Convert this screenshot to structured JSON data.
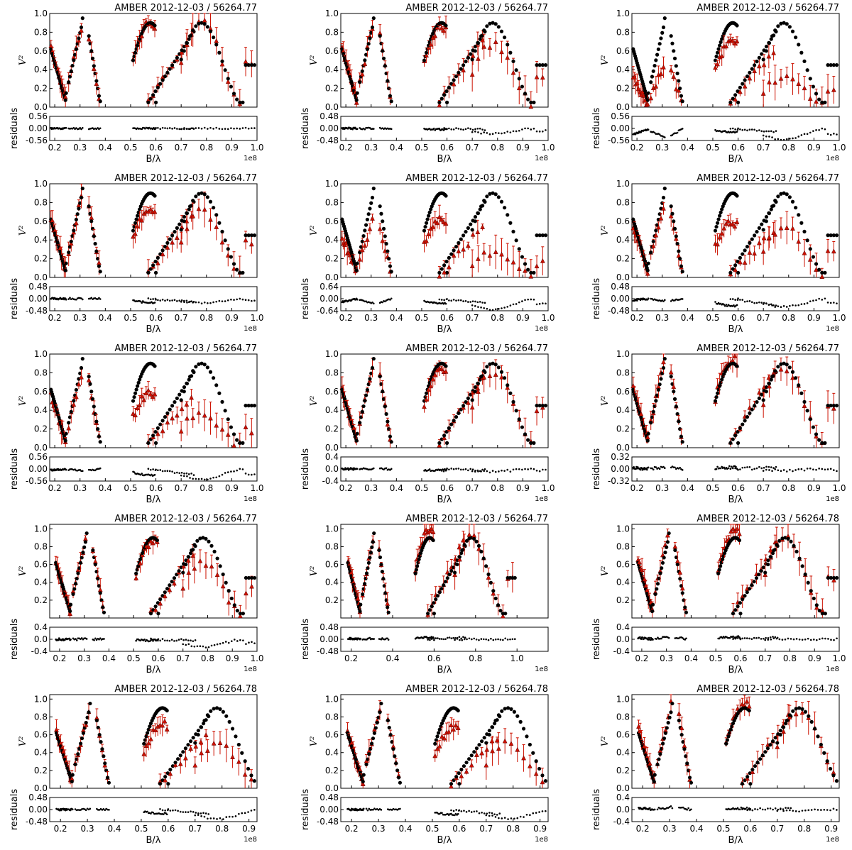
{
  "colors": {
    "model": "#000000",
    "data": "#cc1100"
  },
  "labels": {
    "xlabel": "B/λ",
    "ylabel": "V²",
    "rlabel": "residuals",
    "multiplier": "1e8"
  },
  "chart_data": [
    {
      "type": "scatter",
      "title": "AMBER 2012-12-03 / 56264.77",
      "xlim": [
        0.18,
        1.0
      ],
      "xticks": [
        "0.2",
        "0.3",
        "0.4",
        "0.5",
        "0.6",
        "0.7",
        "0.8",
        "0.9",
        "1.0"
      ],
      "ylim": [
        0,
        1.0
      ],
      "yticks": [
        "0.0",
        "0.2",
        "0.4",
        "0.6",
        "0.8",
        "1.0"
      ],
      "rticks": [
        "0.56",
        "0.00",
        "-0.56"
      ],
      "rlim": [
        -0.56,
        0.56
      ],
      "amp": [
        1.0,
        1.0,
        1.0
      ],
      "seed": 11
    },
    {
      "type": "scatter",
      "title": "AMBER 2012-12-03 / 56264.77",
      "xlim": [
        0.18,
        1.0
      ],
      "xticks": [
        "0.2",
        "0.3",
        "0.4",
        "0.5",
        "0.6",
        "0.7",
        "0.8",
        "0.9",
        "1.0"
      ],
      "ylim": [
        0,
        1.0
      ],
      "yticks": [
        "0.0",
        "0.2",
        "0.4",
        "0.6",
        "0.8",
        "1.0"
      ],
      "rticks": [
        "0.48",
        "0.00",
        "-0.48"
      ],
      "rlim": [
        -0.48,
        0.48
      ],
      "amp": [
        1.0,
        0.95,
        0.75
      ],
      "seed": 12
    },
    {
      "type": "scatter",
      "title": "AMBER 2012-12-03 / 56264.77",
      "xlim": [
        0.18,
        1.0
      ],
      "xticks": [
        "0.2",
        "0.3",
        "0.4",
        "0.5",
        "0.6",
        "0.7",
        "0.8",
        "0.9",
        "1.0"
      ],
      "ylim": [
        0,
        1.0
      ],
      "yticks": [
        "0.0",
        "0.2",
        "0.4",
        "0.6",
        "0.8",
        "1.0"
      ],
      "rticks": [
        "0.56",
        "0.00",
        "-0.56"
      ],
      "rlim": [
        -0.56,
        0.56
      ],
      "amp": [
        0.5,
        0.8,
        0.35
      ],
      "seed": 13
    },
    {
      "type": "scatter",
      "title": "AMBER 2012-12-03 / 56264.77",
      "xlim": [
        0.18,
        1.0
      ],
      "xticks": [
        "0.2",
        "0.3",
        "0.4",
        "0.5",
        "0.6",
        "0.7",
        "0.8",
        "0.9",
        "1.0"
      ],
      "ylim": [
        0,
        1.0
      ],
      "yticks": [
        "0.0",
        "0.2",
        "0.4",
        "0.6",
        "0.8",
        "1.0"
      ],
      "rticks": [
        "0.48",
        "0.00",
        "-0.48"
      ],
      "rlim": [
        -0.48,
        0.48
      ],
      "amp": [
        1.0,
        0.82,
        0.8
      ],
      "seed": 14
    },
    {
      "type": "scatter",
      "title": "AMBER 2012-12-03 / 56264.77",
      "xlim": [
        0.18,
        1.0
      ],
      "xticks": [
        "0.2",
        "0.3",
        "0.4",
        "0.5",
        "0.6",
        "0.7",
        "0.8",
        "0.9",
        "1.0"
      ],
      "ylim": [
        0,
        1.0
      ],
      "yticks": [
        "0.0",
        "0.2",
        "0.4",
        "0.6",
        "0.8",
        "1.0"
      ],
      "rticks": [
        "0.64",
        "0.00",
        "-0.64"
      ],
      "rlim": [
        -0.64,
        0.64
      ],
      "amp": [
        0.7,
        0.7,
        0.3
      ],
      "seed": 15
    },
    {
      "type": "scatter",
      "title": "AMBER 2012-12-03 / 56264.77",
      "xlim": [
        0.18,
        1.0
      ],
      "xticks": [
        "0.2",
        "0.3",
        "0.4",
        "0.5",
        "0.6",
        "0.7",
        "0.8",
        "0.9",
        "1.0"
      ],
      "ylim": [
        0,
        1.0
      ],
      "yticks": [
        "0.0",
        "0.2",
        "0.4",
        "0.6",
        "0.8",
        "1.0"
      ],
      "rticks": [
        "0.48",
        "0.00",
        "-0.48"
      ],
      "rlim": [
        -0.48,
        0.48
      ],
      "amp": [
        0.9,
        0.65,
        0.6
      ],
      "seed": 16
    },
    {
      "type": "scatter",
      "title": "AMBER 2012-12-03 / 56264.77",
      "xlim": [
        0.18,
        1.0
      ],
      "xticks": [
        "0.2",
        "0.3",
        "0.4",
        "0.5",
        "0.6",
        "0.7",
        "0.8",
        "0.9",
        "1.0"
      ],
      "ylim": [
        0,
        1.0
      ],
      "yticks": [
        "0.0",
        "0.2",
        "0.4",
        "0.6",
        "0.8",
        "1.0"
      ],
      "rticks": [
        "0.56",
        "0.00",
        "-0.56"
      ],
      "rlim": [
        -0.56,
        0.56
      ],
      "amp": [
        0.9,
        0.65,
        0.4
      ],
      "seed": 17
    },
    {
      "type": "scatter",
      "title": "AMBER 2012-12-03 / 56264.77",
      "xlim": [
        0.18,
        1.0
      ],
      "xticks": [
        "0.2",
        "0.3",
        "0.4",
        "0.5",
        "0.6",
        "0.7",
        "0.8",
        "0.9",
        "1.0"
      ],
      "ylim": [
        0,
        1.0
      ],
      "yticks": [
        "0.0",
        "0.2",
        "0.4",
        "0.6",
        "0.8",
        "1.0"
      ],
      "rticks": [
        "0.4",
        "0.0",
        "-0.4"
      ],
      "rlim": [
        -0.4,
        0.4
      ],
      "amp": [
        1.0,
        0.95,
        0.9
      ],
      "seed": 18
    },
    {
      "type": "scatter",
      "title": "AMBER 2012-12-03 / 56264.77",
      "xlim": [
        0.18,
        1.0
      ],
      "xticks": [
        "0.2",
        "0.3",
        "0.4",
        "0.5",
        "0.6",
        "0.7",
        "0.8",
        "0.9",
        "1.0"
      ],
      "ylim": [
        0,
        1.0
      ],
      "yticks": [
        "0.0",
        "0.2",
        "0.4",
        "0.6",
        "0.8",
        "1.0"
      ],
      "rticks": [
        "0.32",
        "0.00",
        "-0.32"
      ],
      "rlim": [
        -0.32,
        0.32
      ],
      "amp": [
        1.05,
        1.05,
        0.95
      ],
      "seed": 19
    },
    {
      "type": "scatter",
      "title": "AMBER 2012-12-03 / 56264.77",
      "xlim": [
        0.16,
        1.0
      ],
      "xticks": [
        "0.2",
        "0.3",
        "0.4",
        "0.5",
        "0.6",
        "0.7",
        "0.8",
        "0.9",
        "1.0"
      ],
      "ylim": [
        0,
        1.05
      ],
      "yticks": [
        "0.2",
        "0.4",
        "0.6",
        "0.8",
        "1.0"
      ],
      "rticks": [
        "0.4",
        "0.0",
        "-0.4"
      ],
      "rlim": [
        -0.4,
        0.4
      ],
      "amp": [
        1.0,
        0.95,
        0.7
      ],
      "seed": 20
    },
    {
      "type": "scatter",
      "title": "AMBER 2012-12-03 / 56264.77",
      "xlim": [
        0.15,
        1.15
      ],
      "xticks": [
        "0.2",
        "0.4",
        "0.6",
        "0.8",
        "1.0"
      ],
      "ylim": [
        0,
        1.05
      ],
      "yticks": [
        "0.2",
        "0.4",
        "0.6",
        "0.8",
        "1.0"
      ],
      "rticks": [
        "0.48",
        "0.00",
        "-0.48"
      ],
      "rlim": [
        -0.48,
        0.48
      ],
      "amp": [
        1.05,
        1.1,
        1.0
      ],
      "seed": 21
    },
    {
      "type": "scatter",
      "title": "AMBER 2012-12-03 / 56264.78",
      "xlim": [
        0.16,
        1.0
      ],
      "xticks": [
        "0.2",
        "0.3",
        "0.4",
        "0.5",
        "0.6",
        "0.7",
        "0.8",
        "0.9",
        "1.0"
      ],
      "ylim": [
        0,
        1.05
      ],
      "yticks": [
        "0.2",
        "0.4",
        "0.6",
        "0.8",
        "1.0"
      ],
      "rticks": [
        "0.4",
        "0.0",
        "-0.4"
      ],
      "rlim": [
        -0.4,
        0.4
      ],
      "amp": [
        1.1,
        1.1,
        1.0
      ],
      "seed": 22
    },
    {
      "type": "scatter",
      "title": "AMBER 2012-12-03 / 56264.78",
      "xlim": [
        0.16,
        0.93
      ],
      "xticks": [
        "0.2",
        "0.3",
        "0.4",
        "0.5",
        "0.6",
        "0.7",
        "0.8",
        "0.9"
      ],
      "ylim": [
        0,
        1.05
      ],
      "yticks": [
        "0.0",
        "0.2",
        "0.4",
        "0.6",
        "0.8",
        "1.0"
      ],
      "rticks": [
        "0.48",
        "0.00",
        "-0.48"
      ],
      "rlim": [
        -0.48,
        0.48
      ],
      "amp": [
        1.0,
        0.8,
        0.55
      ],
      "seed": 23
    },
    {
      "type": "scatter",
      "title": "AMBER 2012-12-03 / 56264.78",
      "xlim": [
        0.16,
        0.93
      ],
      "xticks": [
        "0.2",
        "0.3",
        "0.4",
        "0.5",
        "0.6",
        "0.7",
        "0.8",
        "0.9"
      ],
      "ylim": [
        0,
        1.05
      ],
      "yticks": [
        "0.0",
        "0.2",
        "0.4",
        "0.6",
        "0.8",
        "1.0"
      ],
      "rticks": [
        "0.48",
        "0.00",
        "-0.48"
      ],
      "rlim": [
        -0.48,
        0.48
      ],
      "amp": [
        1.0,
        0.75,
        0.55
      ],
      "seed": 24
    },
    {
      "type": "scatter",
      "title": "AMBER 2012-12-03 / 56264.78",
      "xlim": [
        0.16,
        0.93
      ],
      "xticks": [
        "0.2",
        "0.3",
        "0.4",
        "0.5",
        "0.6",
        "0.7",
        "0.8",
        "0.9"
      ],
      "ylim": [
        0,
        1.05
      ],
      "yticks": [
        "0.0",
        "0.2",
        "0.4",
        "0.6",
        "0.8",
        "1.0"
      ],
      "rticks": [
        "0.4",
        "0.0",
        "-0.4"
      ],
      "rlim": [
        -0.4,
        0.4
      ],
      "amp": [
        1.1,
        1.05,
        0.95
      ],
      "seed": 25
    }
  ]
}
